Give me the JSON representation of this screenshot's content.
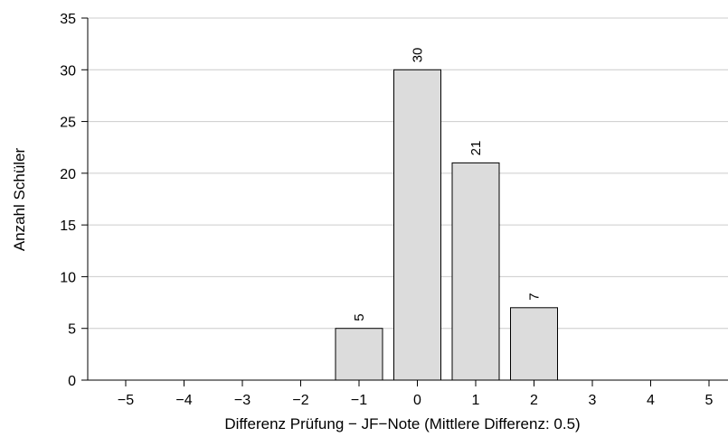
{
  "chart_data": {
    "type": "bar",
    "categories": [
      "−5",
      "−4",
      "−3",
      "−2",
      "−1",
      "0",
      "1",
      "2",
      "3",
      "4",
      "5"
    ],
    "values": [
      0,
      0,
      0,
      0,
      5,
      30,
      21,
      7,
      0,
      0,
      0
    ],
    "data_labels": [
      "",
      "",
      "",
      "",
      "5",
      "30",
      "21",
      "7",
      "",
      "",
      ""
    ],
    "title": "",
    "xlabel": "Differenz Prüfung − JF−Note (Mittlere Differenz: 0.5)",
    "ylabel": "Anzahl Schüler",
    "ylim": [
      0,
      35
    ],
    "yticks": [
      0,
      5,
      10,
      15,
      20,
      25,
      30,
      35
    ],
    "ytick_labels": [
      "0",
      "5",
      "10",
      "15",
      "20",
      "25",
      "30",
      "35"
    ],
    "grid": "horizontal",
    "legend": "none",
    "colors": {
      "bar_fill": "#dcdcdc",
      "bar_stroke": "#000000",
      "grid": "#cccccc",
      "axis": "#000000"
    }
  }
}
